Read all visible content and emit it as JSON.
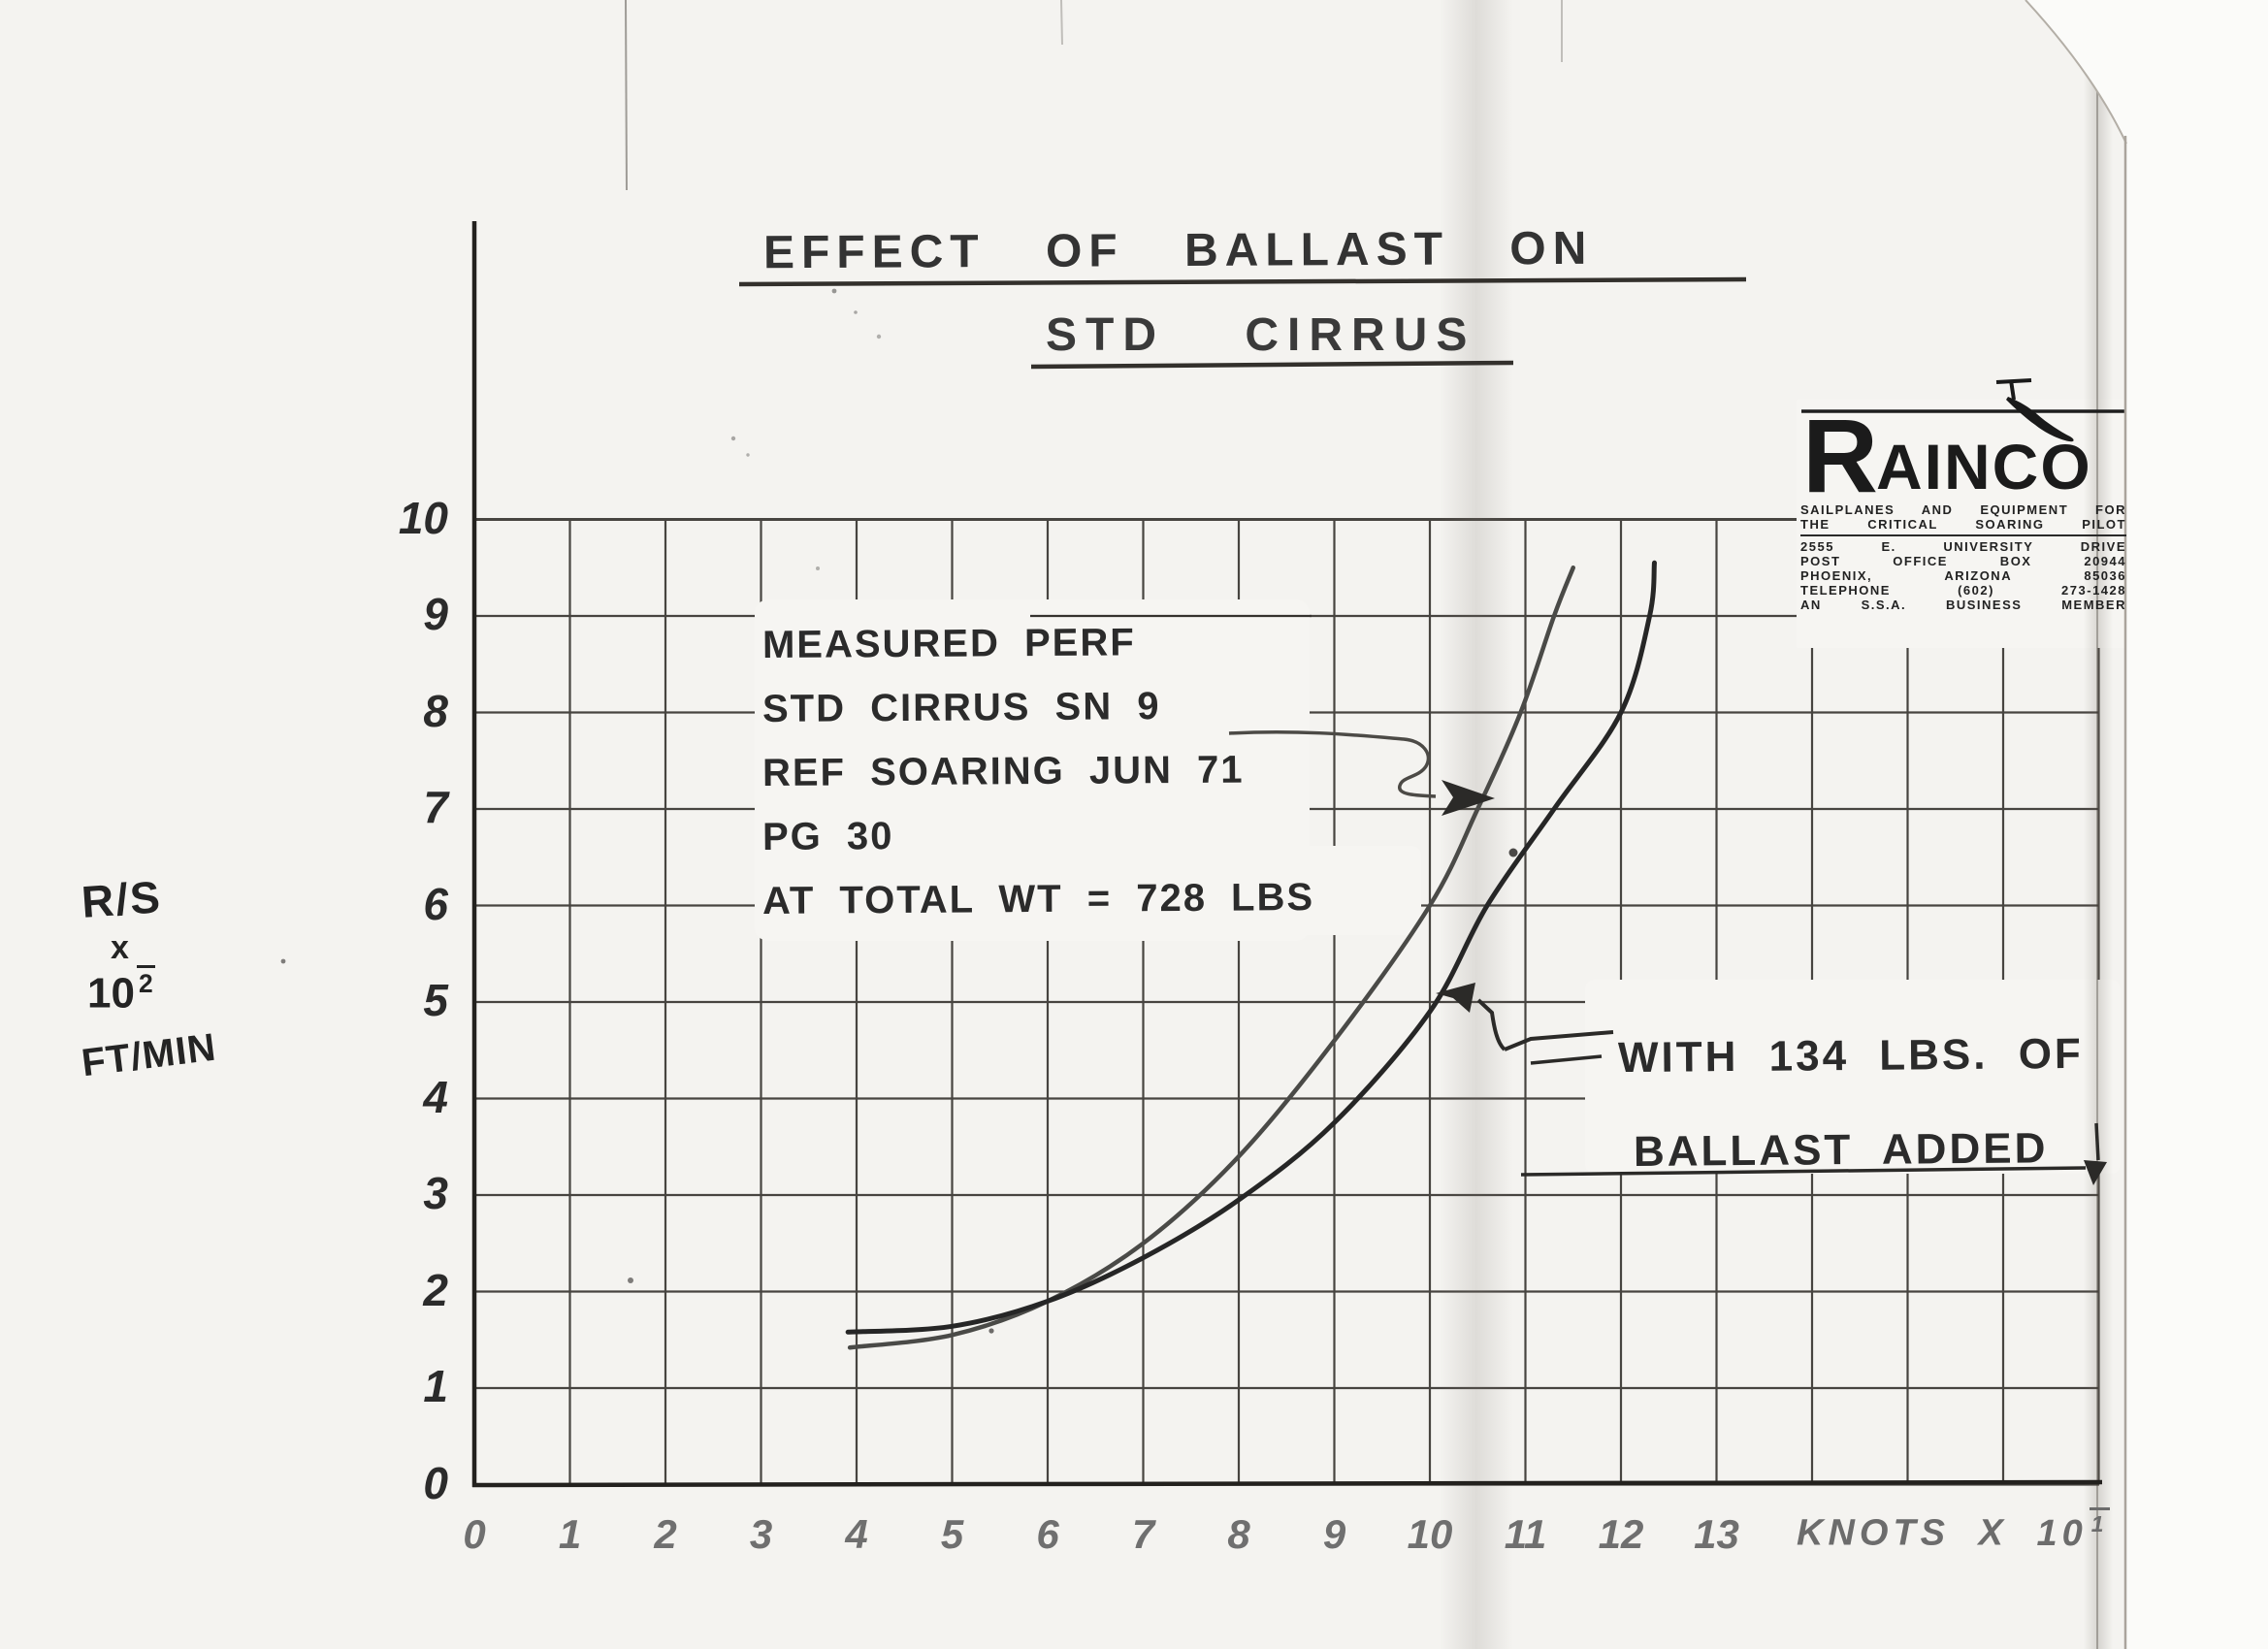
{
  "title": {
    "line1": "EFFECT OF BALLAST ON",
    "line2": "STD CIRRUS"
  },
  "logo": {
    "brand_r": "R",
    "brand_rest": "AINCO",
    "tagline1": "SAILPLANES AND EQUIPMENT FOR",
    "tagline2": "THE CRITICAL SOARING PILOT",
    "address1": "2555 E. UNIVERSITY DRIVE",
    "address2": "POST OFFICE BOX 20944",
    "address3": "PHOENIX, ARIZONA 85036",
    "address4": "TELEPHONE (602) 273-1428",
    "address5": "AN S.S.A. BUSINESS MEMBER"
  },
  "annotations": {
    "measured": {
      "line1": "MEASURED PERF",
      "line2": "STD CIRRUS SN 9",
      "line3": "REF SOARING JUN 71",
      "line4": "PG 30",
      "line5": "AT TOTAL WT = 728 LBS"
    },
    "ballast": {
      "line1": "WITH 134 LBS. OF",
      "line2": "BALLAST ADDED"
    }
  },
  "axes": {
    "y": {
      "labels": [
        "10",
        "9",
        "8",
        "7",
        "6",
        "5",
        "4",
        "3",
        "2",
        "1",
        "0"
      ],
      "unit": {
        "numerator": "R/S",
        "times": "x",
        "base": "10",
        "exponent": "2",
        "denominator": "FT/MIN"
      }
    },
    "x": {
      "labels": [
        "0",
        "1",
        "2",
        "3",
        "4",
        "5",
        "6",
        "7",
        "8",
        "9",
        "10",
        "11",
        "12",
        "13"
      ],
      "unit": {
        "label": "KNOTS X",
        "base": "10",
        "exponent": "1"
      }
    }
  },
  "chart_data": {
    "type": "line",
    "title": "Effect of ballast on STD Cirrus",
    "xlabel": "KNOTS X 10^-1",
    "ylabel": "R/S x 10^-2 FT/MIN",
    "xlim": [
      0,
      18
    ],
    "ylim": [
      0,
      10
    ],
    "grid": true,
    "series": [
      {
        "name": "MEASURED PERF STD CIRRUS SN 9, REF SOARING JUN 71 PG 30, AT TOTAL WT = 728 LBS",
        "color": "#4a4a47",
        "points": [
          [
            3.93,
            1.42
          ],
          [
            5,
            1.55
          ],
          [
            6,
            1.9
          ],
          [
            7,
            2.5
          ],
          [
            8,
            3.4
          ],
          [
            9,
            4.6
          ],
          [
            10,
            6.0
          ],
          [
            10.5,
            7.0
          ],
          [
            10.95,
            8.0
          ],
          [
            11.3,
            9.0
          ],
          [
            11.5,
            9.5
          ]
        ]
      },
      {
        "name": "WITH 134 LBS. OF BALLAST ADDED",
        "color": "#262626",
        "points": [
          [
            3.91,
            1.58
          ],
          [
            5,
            1.64
          ],
          [
            6,
            1.9
          ],
          [
            7,
            2.35
          ],
          [
            8,
            2.95
          ],
          [
            9,
            3.75
          ],
          [
            10,
            4.9
          ],
          [
            10.6,
            6.0
          ],
          [
            11.3,
            7.0
          ],
          [
            12.0,
            8.0
          ],
          [
            12.3,
            9.0
          ],
          [
            12.35,
            9.55
          ]
        ]
      }
    ]
  }
}
